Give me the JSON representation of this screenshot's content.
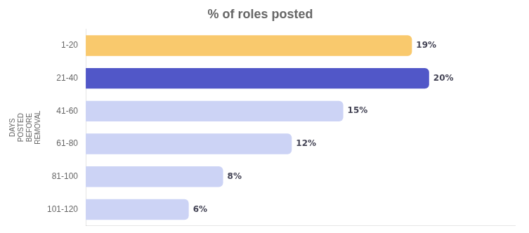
{
  "chart_data": {
    "type": "bar",
    "orientation": "horizontal",
    "title": "% of roles posted",
    "ylabel": "DAYS\nPOSTED\nBEFORE\nREMOVAL",
    "categories": [
      "1-20",
      "21-40",
      "41-60",
      "61-80",
      "81-100",
      "101-120"
    ],
    "values": [
      19,
      20,
      15,
      12,
      8,
      6
    ],
    "value_labels": [
      "19%",
      "20%",
      "15%",
      "12%",
      "8%",
      "6%"
    ],
    "colors": [
      "#f9c96d",
      "#5157c8",
      "#ccd3f5",
      "#ccd3f5",
      "#ccd3f5",
      "#ccd3f5"
    ],
    "xlim": [
      0,
      25
    ],
    "grid": false,
    "data_labels": true,
    "tick_labels": "y"
  }
}
